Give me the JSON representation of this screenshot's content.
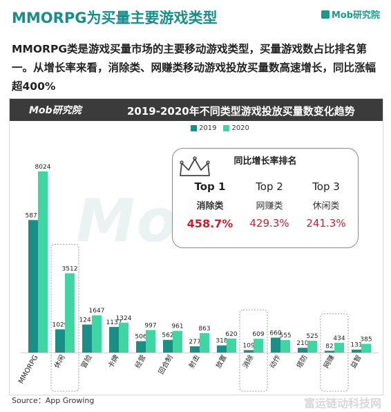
{
  "header": {
    "title": "MMORPG为买量主要游戏类型",
    "brand": "Mob研究院"
  },
  "subtitle": "MMORPG类是游戏买量市场的主要移动游戏类型，买量游戏数占比排名第一。从增长率来看，消除类、网赚类移动游戏投放买量数高速增长，同比涨幅超400%",
  "chart_header": {
    "brand": "Mob研究院",
    "title": "2019-2020年不同类型游戏投放买量数变化趋势"
  },
  "watermark": "Mob",
  "colors": {
    "series_2019": "#1a8f86",
    "series_2020": "#3fd6a4",
    "highlight": "#c4202a"
  },
  "chart_data": {
    "type": "bar",
    "title": "2019-2020年不同类型游戏投放买量数变化趋势",
    "categories": [
      "MMORPG",
      "休闲",
      "冒险",
      "卡牌",
      "经营",
      "回合制",
      "射击",
      "放置",
      "消除",
      "动作",
      "塔防",
      "网赚",
      "益智"
    ],
    "series": [
      {
        "name": "2019",
        "values": [
          5871,
          1029,
          1241,
          1137,
          506,
          562,
          277,
          318,
          109,
          660,
          210,
          82,
          131
        ]
      },
      {
        "name": "2020",
        "values": [
          8024,
          3512,
          1647,
          1324,
          997,
          961,
          863,
          620,
          609,
          555,
          525,
          434,
          385
        ]
      }
    ],
    "highlighted_categories": [
      "休闲",
      "消除",
      "网赚"
    ],
    "legend_position": "top-center",
    "grid": false
  },
  "ranking": {
    "title": "同比增长率排名",
    "items": [
      {
        "rank": "Top 1",
        "category": "消除类",
        "growth": "458.7%"
      },
      {
        "rank": "Top 2",
        "category": "网赚类",
        "growth": "429.3%"
      },
      {
        "rank": "Top 3",
        "category": "休闲类",
        "growth": "241.3%"
      }
    ]
  },
  "source": "Source：App Growing",
  "footer_mark": "富运链动科技网"
}
